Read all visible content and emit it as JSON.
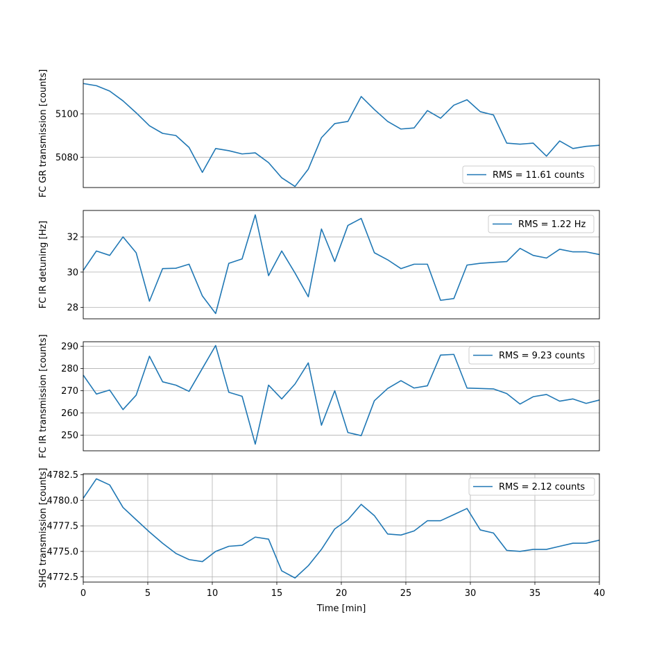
{
  "chart_data": [
    {
      "type": "line",
      "ylabel": "FC GR transmission [counts]",
      "xlabel": "",
      "xlim": [
        0,
        40
      ],
      "ylim": [
        5066,
        5116
      ],
      "yticks": [
        5080,
        5100
      ],
      "grid": "y",
      "legend_loc": "lower-right",
      "series": [
        {
          "name": "RMS = 11.61 counts",
          "color": "#1f77b4",
          "x": [
            0,
            1.02,
            2.05,
            3.08,
            4.1,
            5.13,
            6.15,
            7.18,
            8.2,
            9.23,
            10.26,
            11.28,
            12.31,
            13.33,
            14.36,
            15.38,
            16.41,
            17.44,
            18.46,
            19.49,
            20.51,
            21.54,
            22.56,
            23.59,
            24.62,
            25.64,
            26.67,
            27.69,
            28.72,
            29.74,
            30.77,
            31.79,
            32.82,
            33.85,
            34.87,
            35.9,
            36.92,
            37.95,
            38.97,
            40
          ],
          "values": [
            5114,
            5113,
            5110.5,
            5106,
            5100.5,
            5094.5,
            5091,
            5090,
            5084.5,
            5073,
            5084,
            5083,
            5081.5,
            5082,
            5077.5,
            5070.5,
            5066.5,
            5074.5,
            5089,
            5095.5,
            5096.5,
            5108,
            5102,
            5096.5,
            5093,
            5093.5,
            5101.5,
            5098,
            5104,
            5106.5,
            5101,
            5099.5,
            5086.5,
            5086,
            5086.5,
            5080.5,
            5087.5,
            5084,
            5085,
            5085.5
          ]
        }
      ]
    },
    {
      "type": "line",
      "ylabel": "FC IR detuning [Hz]",
      "xlabel": "",
      "xlim": [
        0,
        40
      ],
      "ylim": [
        27.35,
        33.5
      ],
      "yticks": [
        28,
        30,
        32
      ],
      "grid": "y",
      "legend_loc": "upper-right",
      "series": [
        {
          "name": "RMS = 1.22 Hz",
          "color": "#1f77b4",
          "x": [
            0,
            1.02,
            2.05,
            3.08,
            4.1,
            5.13,
            6.15,
            7.18,
            8.2,
            9.23,
            10.26,
            11.28,
            12.31,
            13.33,
            14.36,
            15.38,
            16.41,
            17.44,
            18.46,
            19.49,
            20.51,
            21.54,
            22.56,
            23.59,
            24.62,
            25.64,
            26.67,
            27.69,
            28.72,
            29.74,
            30.77,
            31.79,
            32.82,
            33.85,
            34.87,
            35.9,
            36.92,
            37.95,
            38.97,
            40
          ],
          "values": [
            30.1,
            31.2,
            30.95,
            32.0,
            31.1,
            28.35,
            30.2,
            30.22,
            30.45,
            28.65,
            27.65,
            30.5,
            30.75,
            33.25,
            29.8,
            31.2,
            29.95,
            28.6,
            32.45,
            30.6,
            32.65,
            33.05,
            31.1,
            30.7,
            30.2,
            30.45,
            30.45,
            28.4,
            28.5,
            30.4,
            30.5,
            30.55,
            30.6,
            31.35,
            30.95,
            30.8,
            31.3,
            31.15,
            31.15,
            31.0
          ]
        }
      ]
    },
    {
      "type": "line",
      "ylabel": "FC IR transmission [counts]",
      "xlabel": "",
      "xlim": [
        0,
        40
      ],
      "ylim": [
        243,
        292
      ],
      "yticks": [
        250,
        260,
        270,
        280,
        290
      ],
      "grid": "y",
      "legend_loc": "upper-right",
      "series": [
        {
          "name": "RMS = 9.23 counts",
          "color": "#1f77b4",
          "x": [
            0,
            1.02,
            2.05,
            3.08,
            4.1,
            5.13,
            6.15,
            7.18,
            8.2,
            9.23,
            10.26,
            11.28,
            12.31,
            13.33,
            14.36,
            15.38,
            16.41,
            17.44,
            18.46,
            19.49,
            20.51,
            21.54,
            22.56,
            23.59,
            24.62,
            25.64,
            26.67,
            27.69,
            28.72,
            29.74,
            30.77,
            31.79,
            32.82,
            33.85,
            34.87,
            35.9,
            36.92,
            37.95,
            38.97,
            40
          ],
          "values": [
            277,
            268.5,
            270.3,
            261.5,
            268,
            285.5,
            274,
            272.5,
            269.7,
            280,
            290.3,
            269.3,
            267.5,
            246,
            272.5,
            266.3,
            273,
            282.5,
            254.5,
            270,
            251.2,
            249.8,
            265.5,
            271,
            274.5,
            271.2,
            272.2,
            286,
            286.3,
            271.2,
            271,
            270.8,
            268.7,
            264,
            267.3,
            268.3,
            265.3,
            266.3,
            264.3,
            265.8
          ]
        }
      ]
    },
    {
      "type": "line",
      "ylabel": "SHG transmission [counts]",
      "xlabel": "Time [min]",
      "xlim": [
        0,
        40
      ],
      "xticks": [
        0,
        5,
        10,
        15,
        20,
        25,
        30,
        35,
        40
      ],
      "ylim": [
        4772,
        4782.6
      ],
      "yticks": [
        4772.5,
        4775.0,
        4777.5,
        4780.0,
        4782.5
      ],
      "grid": "both",
      "legend_loc": "upper-right",
      "series": [
        {
          "name": "RMS = 2.12 counts",
          "color": "#1f77b4",
          "x": [
            0,
            1.02,
            2.05,
            3.08,
            4.1,
            5.13,
            6.15,
            7.18,
            8.2,
            9.23,
            10.26,
            11.28,
            12.31,
            13.33,
            14.36,
            15.38,
            16.41,
            17.44,
            18.46,
            19.49,
            20.51,
            21.54,
            22.56,
            23.59,
            24.62,
            25.64,
            26.67,
            27.69,
            28.72,
            29.74,
            30.77,
            31.79,
            32.82,
            33.85,
            34.87,
            35.9,
            36.92,
            37.95,
            38.97,
            40
          ],
          "values": [
            4780.2,
            4782.1,
            4781.5,
            4779.3,
            4778.1,
            4776.9,
            4775.8,
            4774.8,
            4774.2,
            4774.0,
            4775.0,
            4775.5,
            4775.6,
            4776.4,
            4776.2,
            4773.1,
            4772.4,
            4773.6,
            4775.2,
            4777.2,
            4778.1,
            4779.6,
            4778.5,
            4776.7,
            4776.6,
            4777.0,
            4778.0,
            4778.0,
            4778.6,
            4779.2,
            4777.1,
            4776.8,
            4775.1,
            4775.0,
            4775.2,
            4775.2,
            4775.5,
            4775.8,
            4775.8,
            4776.1
          ]
        }
      ]
    }
  ]
}
